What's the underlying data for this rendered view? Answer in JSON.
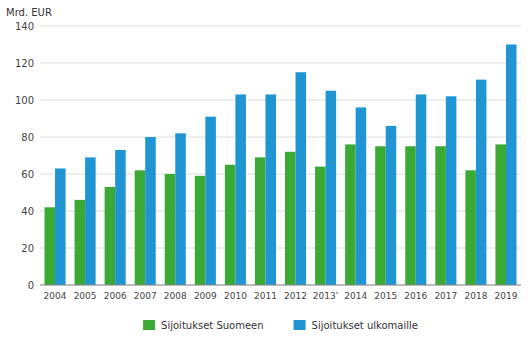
{
  "chart_data": {
    "type": "bar",
    "ylabel": "Mrd. EUR",
    "categories": [
      "2004",
      "2005",
      "2006",
      "2007",
      "2008",
      "2009",
      "2010",
      "2011",
      "2012",
      "2013’",
      "2014",
      "2015",
      "2016",
      "2017",
      "2018",
      "2019"
    ],
    "series": [
      {
        "name": "Sijoitukset Suomeen",
        "color": "#3aaa35",
        "values": [
          42,
          46,
          53,
          62,
          60,
          59,
          65,
          69,
          72,
          64,
          76,
          75,
          75,
          75,
          62,
          76
        ]
      },
      {
        "name": "Sijoitukset ulkomaille",
        "color": "#1f96d3",
        "values": [
          63,
          69,
          73,
          80,
          82,
          91,
          103,
          103,
          115,
          105,
          96,
          86,
          103,
          102,
          111,
          130
        ]
      }
    ],
    "ylim": [
      0,
      140
    ],
    "yticks": [
      0,
      20,
      40,
      60,
      80,
      100,
      120,
      140
    ],
    "grid": true,
    "legend": "bottom"
  }
}
